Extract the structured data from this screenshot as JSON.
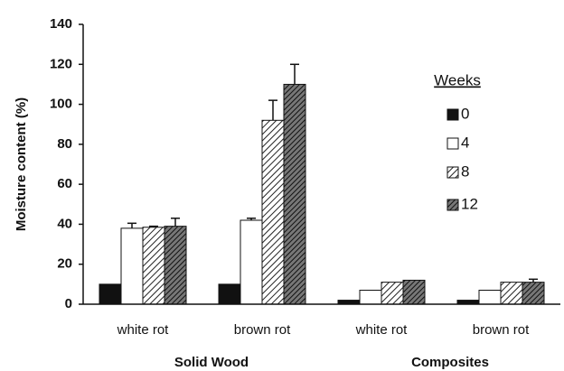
{
  "chart_data": {
    "type": "bar",
    "y_label": "Moisture content (%)",
    "categories": [
      "white rot",
      "brown rot",
      "white rot",
      "brown rot"
    ],
    "groups": [
      "Solid Wood",
      "Composites"
    ],
    "legend_title": "Weeks",
    "legend": "upper right",
    "series": [
      {
        "name": "0",
        "color": "#111111",
        "hatch": false,
        "values": [
          10,
          10,
          2,
          2
        ],
        "errors": [
          0,
          0,
          0,
          0
        ]
      },
      {
        "name": "4",
        "color": "#ffffff",
        "hatch": false,
        "values": [
          38,
          42,
          7,
          7
        ],
        "errors": [
          2.5,
          1,
          0,
          0
        ]
      },
      {
        "name": "8",
        "color": "#999999",
        "hatch": true,
        "values": [
          38.5,
          92,
          11,
          11
        ],
        "errors": [
          0.5,
          10,
          0,
          0
        ]
      },
      {
        "name": "12",
        "color": "#555555",
        "hatch": true,
        "values": [
          39,
          110,
          12,
          11
        ],
        "errors": [
          4,
          10,
          0,
          1.5
        ]
      }
    ],
    "ylim": [
      0,
      140
    ],
    "yticks": [
      0,
      20,
      40,
      60,
      80,
      100,
      120,
      140
    ],
    "grid": false
  }
}
